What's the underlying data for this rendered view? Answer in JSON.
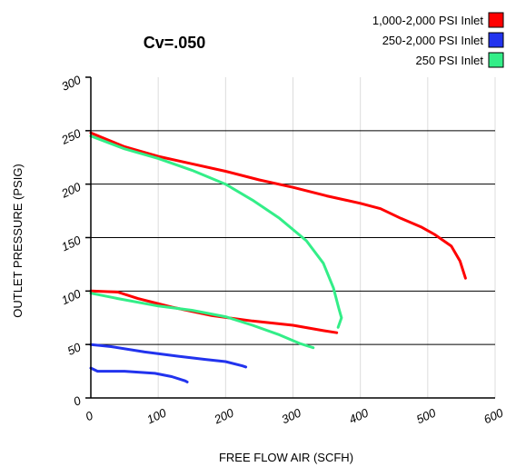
{
  "chart_data": {
    "type": "line",
    "title": "Cv=.050",
    "xlabel": "FREE FLOW AIR (SCFH)",
    "ylabel": "OUTLET PRESSURE (PSIG)",
    "xlim": [
      0,
      600
    ],
    "ylim": [
      0,
      300
    ],
    "x_ticks": [
      "0",
      "100",
      "200",
      "300",
      "400",
      "500",
      "600"
    ],
    "y_ticks": [
      "0",
      "50",
      "100",
      "150",
      "200",
      "250",
      "300"
    ],
    "grid": "on",
    "legend_position": "top-right",
    "legend": [
      {
        "label": "1,000-2,000 PSI Inlet",
        "color": "#ff0000"
      },
      {
        "label": "250-2,000 PSI Inlet",
        "color": "#2233ee"
      },
      {
        "label": "250 PSI Inlet",
        "color": "#33ee88"
      }
    ],
    "series": [
      {
        "name": "1,000-2,000 PSI Inlet",
        "color": "#ff0000",
        "points": [
          [
            0,
            248
          ],
          [
            50,
            235
          ],
          [
            100,
            226
          ],
          [
            150,
            219
          ],
          [
            200,
            212
          ],
          [
            250,
            204
          ],
          [
            300,
            197
          ],
          [
            350,
            189
          ],
          [
            400,
            182
          ],
          [
            430,
            177
          ],
          [
            460,
            168
          ],
          [
            490,
            160
          ],
          [
            510,
            153
          ],
          [
            535,
            142
          ],
          [
            548,
            128
          ],
          [
            556,
            112
          ]
        ]
      },
      {
        "name": "1,000-2,000 PSI Inlet",
        "color": "#ff0000",
        "points": [
          [
            0,
            100
          ],
          [
            40,
            99
          ],
          [
            70,
            93
          ],
          [
            120,
            85
          ],
          [
            180,
            77
          ],
          [
            240,
            72
          ],
          [
            300,
            68
          ],
          [
            345,
            63
          ],
          [
            365,
            61
          ]
        ]
      },
      {
        "name": "250-2,000 PSI Inlet",
        "color": "#2233ee",
        "points": [
          [
            0,
            50
          ],
          [
            30,
            48
          ],
          [
            80,
            43
          ],
          [
            130,
            39
          ],
          [
            170,
            36
          ],
          [
            200,
            34
          ],
          [
            225,
            30
          ],
          [
            230,
            29
          ]
        ]
      },
      {
        "name": "250-2,000 PSI Inlet",
        "color": "#2233ee",
        "points": [
          [
            0,
            28
          ],
          [
            10,
            25
          ],
          [
            50,
            25
          ],
          [
            95,
            23
          ],
          [
            120,
            20
          ],
          [
            140,
            16
          ],
          [
            143,
            15
          ]
        ]
      },
      {
        "name": "250 PSI Inlet",
        "color": "#33ee88",
        "points": [
          [
            0,
            245
          ],
          [
            50,
            233
          ],
          [
            100,
            224
          ],
          [
            150,
            213
          ],
          [
            200,
            200
          ],
          [
            240,
            185
          ],
          [
            280,
            168
          ],
          [
            320,
            147
          ],
          [
            345,
            126
          ],
          [
            360,
            103
          ],
          [
            368,
            84
          ],
          [
            372,
            75
          ],
          [
            367,
            66
          ]
        ]
      },
      {
        "name": "250 PSI Inlet",
        "color": "#33ee88",
        "points": [
          [
            0,
            98
          ],
          [
            40,
            93
          ],
          [
            100,
            86
          ],
          [
            150,
            82
          ],
          [
            200,
            76
          ],
          [
            240,
            68
          ],
          [
            280,
            59
          ],
          [
            310,
            51
          ],
          [
            330,
            47
          ]
        ]
      }
    ]
  }
}
